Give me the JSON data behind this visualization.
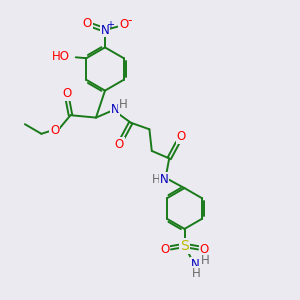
{
  "bg_color": "#eaeaf0",
  "atom_colors": {
    "O": "#ff0000",
    "N": "#0000bb",
    "S": "#bbbb00",
    "C": "#1a7a1a",
    "H": "#6a6a6a",
    "default": "#1a7a1a"
  },
  "bond_lw": 1.4,
  "font_size": 8.5
}
